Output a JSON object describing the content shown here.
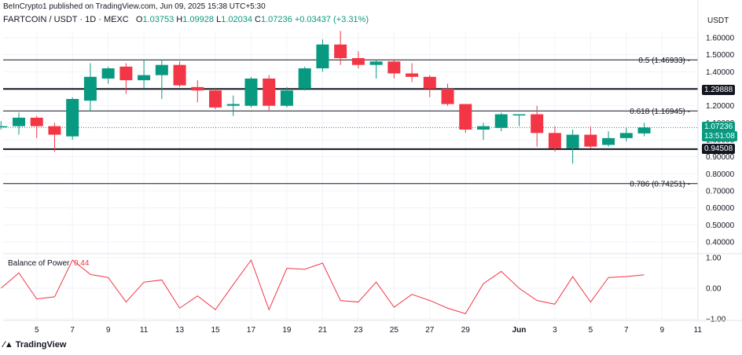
{
  "watermark": "BeInCrypto1 published on TradingView.com, Jun 09, 2025 15:38 UTC+5:30",
  "header": {
    "symbol": "FARTCOIN / USDT · 1D · MEXC",
    "o_label": "O",
    "o_value": "1.03753",
    "h_label": "H",
    "h_value": "1.09928",
    "l_label": "L",
    "l_value": "1.02034",
    "c_label": "C",
    "c_value": "1.07236",
    "change": "+0.03437 (+3.31%)"
  },
  "currency_label": "USDT",
  "brand": "TradingView",
  "price_tags": {
    "last_price": "1.07236",
    "countdown": "13:51:08",
    "level_upper": "1.29888",
    "level_lower": "0.94508"
  },
  "colors": {
    "up": "#089981",
    "down": "#f23645",
    "bop_line": "#f23645",
    "grid": "#f0f3fa",
    "level": "#131722"
  },
  "chart_data": [
    {
      "type": "candlestick",
      "title": "FARTCOIN / USDT · 1D · MEXC",
      "ylim": [
        0.4,
        1.6
      ],
      "y_ticks": [
        "0.40000",
        "0.50000",
        "0.60000",
        "0.70000",
        "0.80000",
        "0.90000",
        "1.00000",
        "1.10000",
        "1.20000",
        "1.30000",
        "1.40000",
        "1.50000",
        "1.60000"
      ],
      "x_ticks": [
        "5",
        "7",
        "9",
        "11",
        "13",
        "15",
        "17",
        "19",
        "21",
        "23",
        "25",
        "27",
        "29",
        "Jun",
        "3",
        "5",
        "7",
        "9",
        "11"
      ],
      "levels": [
        {
          "label": "0.5 (1.46933)",
          "value": 1.46933
        },
        {
          "label": "0.618 (1.16945)",
          "value": 1.16945
        },
        {
          "label": "0.786 (0.74251)",
          "value": 0.74251
        },
        {
          "label": "1.29888",
          "value": 1.29888
        },
        {
          "label": "0.94508",
          "value": 0.94508
        }
      ],
      "candles": [
        {
          "date": "May 04",
          "o": 1.08,
          "h": 1.11,
          "l": 1.06,
          "c": 1.08
        },
        {
          "date": "May 05",
          "o": 1.08,
          "h": 1.16,
          "l": 1.03,
          "c": 1.13
        },
        {
          "date": "May 06",
          "o": 1.13,
          "h": 1.14,
          "l": 1.01,
          "c": 1.08
        },
        {
          "date": "May 07",
          "o": 1.08,
          "h": 1.1,
          "l": 0.93,
          "c": 1.03
        },
        {
          "date": "May 08",
          "o": 1.02,
          "h": 1.25,
          "l": 1.0,
          "c": 1.24
        },
        {
          "date": "May 09",
          "o": 1.23,
          "h": 1.45,
          "l": 1.17,
          "c": 1.37
        },
        {
          "date": "May 10",
          "o": 1.36,
          "h": 1.43,
          "l": 1.33,
          "c": 1.42
        },
        {
          "date": "May 11",
          "o": 1.43,
          "h": 1.45,
          "l": 1.27,
          "c": 1.35
        },
        {
          "date": "May 12",
          "o": 1.35,
          "h": 1.47,
          "l": 1.3,
          "c": 1.38
        },
        {
          "date": "May 13",
          "o": 1.38,
          "h": 1.47,
          "l": 1.24,
          "c": 1.44
        },
        {
          "date": "May 14",
          "o": 1.44,
          "h": 1.46,
          "l": 1.31,
          "c": 1.32
        },
        {
          "date": "May 15",
          "o": 1.31,
          "h": 1.35,
          "l": 1.22,
          "c": 1.29
        },
        {
          "date": "May 16",
          "o": 1.29,
          "h": 1.3,
          "l": 1.18,
          "c": 1.19
        },
        {
          "date": "May 17",
          "o": 1.2,
          "h": 1.26,
          "l": 1.14,
          "c": 1.21
        },
        {
          "date": "May 18",
          "o": 1.2,
          "h": 1.37,
          "l": 1.19,
          "c": 1.36
        },
        {
          "date": "May 19",
          "o": 1.36,
          "h": 1.38,
          "l": 1.17,
          "c": 1.2
        },
        {
          "date": "May 20",
          "o": 1.2,
          "h": 1.31,
          "l": 1.19,
          "c": 1.29
        },
        {
          "date": "May 21",
          "o": 1.3,
          "h": 1.43,
          "l": 1.29,
          "c": 1.42
        },
        {
          "date": "May 22",
          "o": 1.42,
          "h": 1.59,
          "l": 1.4,
          "c": 1.56
        },
        {
          "date": "May 23",
          "o": 1.56,
          "h": 1.64,
          "l": 1.44,
          "c": 1.48
        },
        {
          "date": "May 24",
          "o": 1.48,
          "h": 1.52,
          "l": 1.42,
          "c": 1.44
        },
        {
          "date": "May 25",
          "o": 1.44,
          "h": 1.47,
          "l": 1.36,
          "c": 1.46
        },
        {
          "date": "May 26",
          "o": 1.46,
          "h": 1.47,
          "l": 1.36,
          "c": 1.39
        },
        {
          "date": "May 27",
          "o": 1.39,
          "h": 1.45,
          "l": 1.34,
          "c": 1.37
        },
        {
          "date": "May 28",
          "o": 1.37,
          "h": 1.38,
          "l": 1.25,
          "c": 1.3
        },
        {
          "date": "May 29",
          "o": 1.3,
          "h": 1.33,
          "l": 1.2,
          "c": 1.21
        },
        {
          "date": "May 30",
          "o": 1.21,
          "h": 1.21,
          "l": 1.04,
          "c": 1.06
        },
        {
          "date": "May 31",
          "o": 1.06,
          "h": 1.1,
          "l": 1.0,
          "c": 1.08
        },
        {
          "date": "Jun 01",
          "o": 1.07,
          "h": 1.16,
          "l": 1.05,
          "c": 1.15
        },
        {
          "date": "Jun 02",
          "o": 1.15,
          "h": 1.15,
          "l": 1.08,
          "c": 1.15
        },
        {
          "date": "Jun 03",
          "o": 1.15,
          "h": 1.2,
          "l": 0.96,
          "c": 1.04
        },
        {
          "date": "Jun 04",
          "o": 1.04,
          "h": 1.08,
          "l": 0.93,
          "c": 0.95
        },
        {
          "date": "Jun 05",
          "o": 0.95,
          "h": 1.06,
          "l": 0.86,
          "c": 1.03
        },
        {
          "date": "Jun 06",
          "o": 1.03,
          "h": 1.08,
          "l": 0.95,
          "c": 0.96
        },
        {
          "date": "Jun 07",
          "o": 0.97,
          "h": 1.05,
          "l": 0.96,
          "c": 1.01
        },
        {
          "date": "Jun 08",
          "o": 1.01,
          "h": 1.07,
          "l": 0.99,
          "c": 1.04
        },
        {
          "date": "Jun 09",
          "o": 1.03753,
          "h": 1.09928,
          "l": 1.02034,
          "c": 1.07236
        }
      ]
    },
    {
      "type": "line",
      "title": "Balance of Power",
      "current_value": "0.44",
      "ylim": [
        -1,
        1
      ],
      "y_ticks": [
        "1.00",
        "0.00",
        "−1.00"
      ],
      "x": [
        "May 04",
        "May 05",
        "May 06",
        "May 07",
        "May 08",
        "May 09",
        "May 10",
        "May 11",
        "May 12",
        "May 13",
        "May 14",
        "May 15",
        "May 16",
        "May 17",
        "May 18",
        "May 19",
        "May 20",
        "May 21",
        "May 22",
        "May 23",
        "May 24",
        "May 25",
        "May 26",
        "May 27",
        "May 28",
        "May 29",
        "May 30",
        "May 31",
        "Jun 01",
        "Jun 02",
        "Jun 03",
        "Jun 04",
        "Jun 05",
        "Jun 06",
        "Jun 07",
        "Jun 08",
        "Jun 09"
      ],
      "values": [
        0.0,
        0.5,
        -0.35,
        -0.28,
        0.92,
        0.45,
        0.35,
        -0.45,
        0.2,
        0.27,
        -0.65,
        -0.25,
        -0.7,
        0.12,
        0.92,
        -0.7,
        0.65,
        0.62,
        0.82,
        -0.4,
        -0.45,
        0.2,
        -0.62,
        -0.2,
        -0.4,
        -0.65,
        -0.83,
        0.15,
        0.55,
        0.0,
        -0.4,
        -0.52,
        0.38,
        -0.45,
        0.35,
        0.38,
        0.44
      ]
    }
  ]
}
